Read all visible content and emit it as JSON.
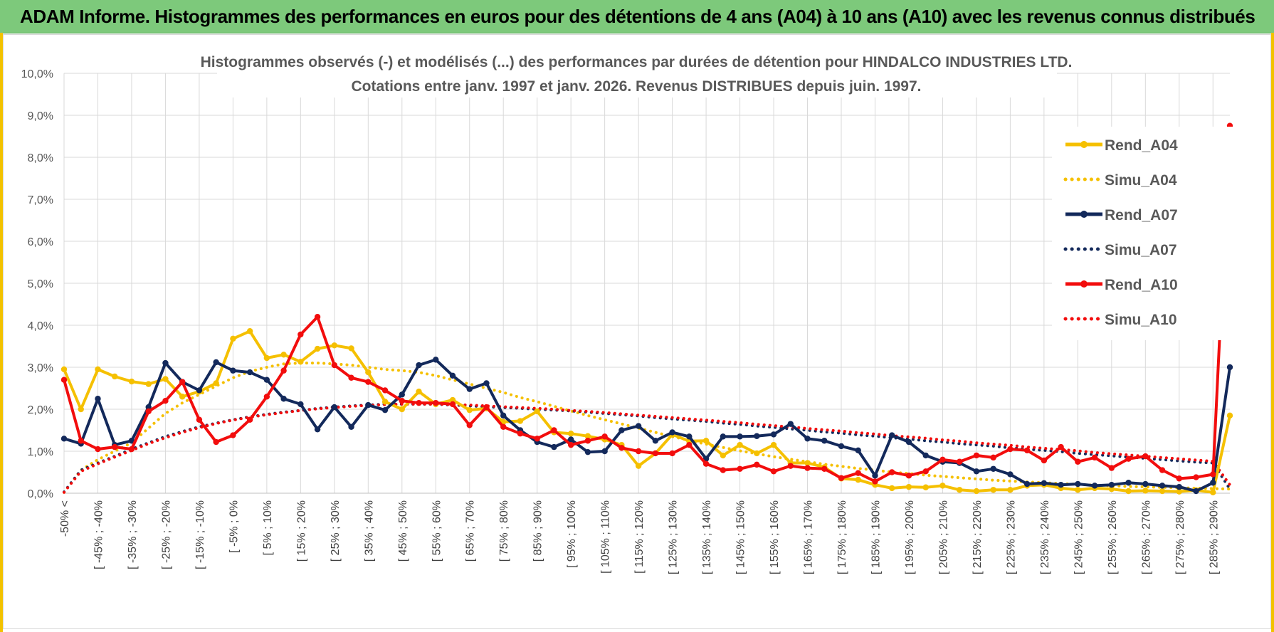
{
  "header": {
    "title": "ADAM Informe. Histogrammes des performances en euros pour des détentions de 4 ans (A04) à 10 ans (A10) avec les revenus connus distribués"
  },
  "colors": {
    "A04": "#f5c000",
    "A07": "#13295b",
    "A10": "#f20d0d",
    "grid": "#d9d9d9",
    "banner": "#7dc97b"
  },
  "chart_data": {
    "type": "line",
    "title_lines": [
      "Histogrammes observés (-) et modélisés (...) des performances par durées de détention pour HINDALCO INDUSTRIES LTD.",
      "Cotations entre janv. 1997 et janv. 2026. Revenus DISTRIBUES depuis juin. 1997."
    ],
    "ylim": [
      0,
      10
    ],
    "y_ticks": [
      "0,0%",
      "1,0%",
      "2,0%",
      "3,0%",
      "4,0%",
      "5,0%",
      "6,0%",
      "7,0%",
      "8,0%",
      "9,0%",
      "10,0%"
    ],
    "x_tick_labels": [
      "-50% <",
      "[ -45% ; -40%",
      "[ -35% ; -30%",
      "[ -25% ; -20%",
      "[ -15% ; -10%",
      "[ -5% ; 0%",
      "[ 5% ; 10%",
      "[ 15% ; 20%",
      "[ 25% ; 30%",
      "[ 35% ; 40%",
      "[ 45% ; 50%",
      "[ 55% ; 60%",
      "[ 65% ; 70%",
      "[ 75% ; 80%",
      "[ 85% ; 90%",
      "[ 95% ; 100%",
      "[ 105% ; 110%",
      "[ 115% ; 120%",
      "[ 125% ; 130%",
      "[ 135% ; 140%",
      "[ 145% ; 150%",
      "[ 155% ; 160%",
      "[ 165% ; 170%",
      "[ 175% ; 180%",
      "[ 185% ; 190%",
      "[ 195% ; 200%",
      "[ 205% ; 210%",
      "[ 215% ; 220%",
      "[ 225% ; 230%",
      "[ 235% ; 240%",
      "[ 245% ; 250%",
      "[ 255% ; 260%",
      "[ 265% ; 270%",
      "[ 275% ; 280%",
      "[ 285% ; 290%"
    ],
    "n_categories": 70,
    "series": [
      {
        "name": "Rend_A04",
        "color": "#f5c000",
        "style": "solid",
        "marker": true,
        "values": [
          2.95,
          2.0,
          2.95,
          2.78,
          2.66,
          2.6,
          2.72,
          2.3,
          2.42,
          2.62,
          3.68,
          3.86,
          3.22,
          3.3,
          3.13,
          3.44,
          3.52,
          3.45,
          2.88,
          2.18,
          2.0,
          2.42,
          2.12,
          2.22,
          1.98,
          2.02,
          1.7,
          1.72,
          1.95,
          1.45,
          1.42,
          1.36,
          1.28,
          1.15,
          0.65,
          0.95,
          1.4,
          1.24,
          1.25,
          0.9,
          1.15,
          0.95,
          1.15,
          0.72,
          0.72,
          0.62,
          0.35,
          0.32,
          0.2,
          0.12,
          0.15,
          0.14,
          0.18,
          0.08,
          0.05,
          0.08,
          0.08,
          0.18,
          0.2,
          0.12,
          0.08,
          0.12,
          0.1,
          0.05,
          0.06,
          0.05,
          0.04,
          0.07,
          0.02,
          1.85
        ]
      },
      {
        "name": "Simu_A04",
        "color": "#f5c000",
        "style": "dotted",
        "marker": false,
        "values": [
          0.02,
          0.55,
          0.8,
          1.0,
          1.2,
          1.55,
          1.9,
          2.15,
          2.35,
          2.55,
          2.75,
          2.9,
          3.0,
          3.08,
          3.1,
          3.1,
          3.08,
          3.05,
          3.0,
          2.95,
          2.92,
          2.88,
          2.8,
          2.7,
          2.6,
          2.5,
          2.4,
          2.28,
          2.18,
          2.07,
          1.96,
          1.85,
          1.75,
          1.65,
          1.55,
          1.45,
          1.35,
          1.26,
          1.17,
          1.09,
          1.01,
          0.94,
          0.87,
          0.81,
          0.75,
          0.69,
          0.64,
          0.59,
          0.55,
          0.5,
          0.47,
          0.43,
          0.4,
          0.37,
          0.34,
          0.31,
          0.29,
          0.27,
          0.25,
          0.23,
          0.21,
          0.19,
          0.18,
          0.16,
          0.15,
          0.14,
          0.13,
          0.12,
          0.11,
          0.1
        ]
      },
      {
        "name": "Rend_A07",
        "color": "#13295b",
        "style": "solid",
        "marker": true,
        "values": [
          1.3,
          1.18,
          2.25,
          1.15,
          1.25,
          2.05,
          3.1,
          2.65,
          2.45,
          3.12,
          2.92,
          2.88,
          2.7,
          2.25,
          2.12,
          1.52,
          2.05,
          1.58,
          2.1,
          1.98,
          2.35,
          3.05,
          3.18,
          2.8,
          2.48,
          2.62,
          1.85,
          1.5,
          1.22,
          1.1,
          1.28,
          0.98,
          1.0,
          1.5,
          1.6,
          1.25,
          1.45,
          1.35,
          0.82,
          1.35,
          1.35,
          1.36,
          1.4,
          1.65,
          1.3,
          1.25,
          1.12,
          1.02,
          0.42,
          1.38,
          1.22,
          0.9,
          0.75,
          0.72,
          0.52,
          0.58,
          0.45,
          0.22,
          0.24,
          0.2,
          0.22,
          0.18,
          0.2,
          0.25,
          0.22,
          0.18,
          0.15,
          0.05,
          0.25,
          3.0
        ]
      },
      {
        "name": "Simu_A07",
        "color": "#13295b",
        "style": "dotted",
        "marker": false,
        "values": [
          0.03,
          0.55,
          0.72,
          0.88,
          1.05,
          1.2,
          1.35,
          1.47,
          1.58,
          1.67,
          1.75,
          1.82,
          1.88,
          1.93,
          1.97,
          2.02,
          2.05,
          2.08,
          2.1,
          2.12,
          2.12,
          2.12,
          2.12,
          2.1,
          2.08,
          2.06,
          2.04,
          2.02,
          2.0,
          1.98,
          1.96,
          1.93,
          1.9,
          1.87,
          1.84,
          1.8,
          1.77,
          1.74,
          1.71,
          1.67,
          1.64,
          1.6,
          1.57,
          1.53,
          1.5,
          1.46,
          1.43,
          1.39,
          1.36,
          1.32,
          1.29,
          1.25,
          1.22,
          1.18,
          1.15,
          1.12,
          1.08,
          1.05,
          1.02,
          0.99,
          0.95,
          0.92,
          0.89,
          0.86,
          0.83,
          0.8,
          0.77,
          0.74,
          0.72,
          0.1
        ]
      },
      {
        "name": "Rend_A10",
        "color": "#f20d0d",
        "style": "solid",
        "marker": true,
        "values": [
          2.7,
          1.25,
          1.05,
          1.1,
          1.05,
          1.95,
          2.2,
          2.65,
          1.75,
          1.22,
          1.38,
          1.75,
          2.3,
          2.92,
          3.78,
          4.2,
          3.05,
          2.75,
          2.65,
          2.45,
          2.2,
          2.15,
          2.15,
          2.12,
          1.62,
          2.05,
          1.58,
          1.42,
          1.3,
          1.5,
          1.15,
          1.25,
          1.35,
          1.08,
          1.0,
          0.95,
          0.95,
          1.15,
          0.7,
          0.55,
          0.58,
          0.68,
          0.52,
          0.65,
          0.6,
          0.58,
          0.36,
          0.48,
          0.28,
          0.5,
          0.42,
          0.52,
          0.8,
          0.75,
          0.9,
          0.85,
          1.05,
          1.02,
          0.78,
          1.1,
          0.75,
          0.85,
          0.6,
          0.82,
          0.88,
          0.55,
          0.35,
          0.38,
          0.45,
          8.75
        ]
      },
      {
        "name": "Simu_A10",
        "color": "#f20d0d",
        "style": "dotted",
        "marker": false,
        "values": [
          0.02,
          0.52,
          0.7,
          0.86,
          1.02,
          1.18,
          1.32,
          1.45,
          1.56,
          1.66,
          1.74,
          1.81,
          1.87,
          1.92,
          1.97,
          2.01,
          2.04,
          2.07,
          2.09,
          2.11,
          2.12,
          2.12,
          2.12,
          2.11,
          2.1,
          2.08,
          2.06,
          2.04,
          2.02,
          2.0,
          1.97,
          1.95,
          1.92,
          1.89,
          1.86,
          1.83,
          1.8,
          1.77,
          1.74,
          1.71,
          1.68,
          1.64,
          1.61,
          1.58,
          1.54,
          1.51,
          1.48,
          1.44,
          1.41,
          1.37,
          1.34,
          1.31,
          1.27,
          1.24,
          1.2,
          1.17,
          1.14,
          1.1,
          1.07,
          1.04,
          1.01,
          0.97,
          0.94,
          0.91,
          0.88,
          0.85,
          0.82,
          0.79,
          0.76,
          0.2
        ]
      }
    ],
    "legend": [
      "Rend_A04",
      "Simu_A04",
      "Rend_A07",
      "Simu_A07",
      "Rend_A10",
      "Simu_A10"
    ]
  }
}
